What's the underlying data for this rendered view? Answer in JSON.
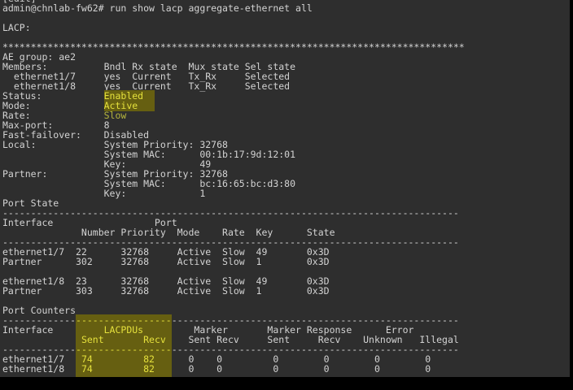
{
  "colors": {
    "desktop_bg": "#000000",
    "screen_bg": "#2e2e2e",
    "text": "#d3d3d3",
    "highlight_bg": "#665f11",
    "highlight_text": "#e4e03c",
    "highlight_dim_text": "#b5b53d"
  },
  "terminal": {
    "context": "[edit]",
    "prompt": "admin@chnlab-fw62#",
    "command": "run show lacp aggregate-ethernet all",
    "lines": [
      {
        "name": "edit-context-line",
        "segments": [
          [
            "norm",
            "[edit]"
          ]
        ]
      },
      {
        "name": "command-line",
        "segments": [
          [
            "norm",
            "admin@chnlab-fw62# run show lacp aggregate-ethernet all"
          ]
        ]
      },
      {
        "name": "blank-line",
        "segments": [
          [
            "norm",
            ""
          ]
        ]
      },
      {
        "name": "lacp-section-label",
        "segments": [
          [
            "norm",
            "LACP:"
          ]
        ]
      },
      {
        "name": "blank-line",
        "segments": [
          [
            "norm",
            ""
          ]
        ]
      },
      {
        "name": "section-separator-asterisks",
        "segments": [
          [
            "norm",
            "**********************************************************************************"
          ]
        ]
      },
      {
        "name": "ae-group-line",
        "segments": [
          [
            "norm",
            "AE group: ae2"
          ]
        ]
      },
      {
        "name": "members-header-row",
        "segments": [
          [
            "norm",
            "Members:          Bndl Rx state  Mux state Sel state"
          ]
        ]
      },
      {
        "name": "member-row-ethernet1-7",
        "segments": [
          [
            "norm",
            "  ethernet1/7     yes  Current   Tx_Rx     Selected"
          ]
        ]
      },
      {
        "name": "member-row-ethernet1-8",
        "segments": [
          [
            "norm",
            "  ethernet1/8     yes  Current   Tx_Rx     Selected"
          ]
        ]
      },
      {
        "name": "status-row",
        "segments": [
          [
            "norm",
            "Status:           "
          ],
          [
            "hl",
            "Enabled  "
          ]
        ]
      },
      {
        "name": "mode-row",
        "segments": [
          [
            "norm",
            "Mode:             "
          ],
          [
            "hl",
            "Active   "
          ]
        ]
      },
      {
        "name": "rate-row",
        "segments": [
          [
            "norm",
            "Rate:             "
          ],
          [
            "slow",
            "Slow     "
          ]
        ]
      },
      {
        "name": "max-port-row",
        "segments": [
          [
            "norm",
            "Max-port:         8"
          ]
        ]
      },
      {
        "name": "fast-failover-row",
        "segments": [
          [
            "norm",
            "Fast-failover:    Disabled"
          ]
        ]
      },
      {
        "name": "local-system-priority-row",
        "segments": [
          [
            "norm",
            "Local:            System Priority: 32768"
          ]
        ]
      },
      {
        "name": "local-system-mac-row",
        "segments": [
          [
            "norm",
            "                  System MAC:      00:1b:17:9d:12:01"
          ]
        ]
      },
      {
        "name": "local-key-row",
        "segments": [
          [
            "norm",
            "                  Key:             49"
          ]
        ]
      },
      {
        "name": "partner-system-priority-row",
        "segments": [
          [
            "norm",
            "Partner:          System Priority: 32768"
          ]
        ]
      },
      {
        "name": "partner-system-mac-row",
        "segments": [
          [
            "norm",
            "                  System MAC:      bc:16:65:bc:d3:80"
          ]
        ]
      },
      {
        "name": "partner-key-row",
        "segments": [
          [
            "norm",
            "                  Key:             1"
          ]
        ]
      },
      {
        "name": "port-state-section-title",
        "segments": [
          [
            "norm",
            "Port State"
          ]
        ]
      },
      {
        "name": "divider-dashes",
        "segments": [
          [
            "norm",
            "---------------------------------------------------------------------------------"
          ]
        ]
      },
      {
        "name": "port-state-header-row-1",
        "segments": [
          [
            "norm",
            "Interface                  Port"
          ]
        ]
      },
      {
        "name": "port-state-header-row-2",
        "segments": [
          [
            "norm",
            "              Number Priority  Mode    Rate  Key      State"
          ]
        ]
      },
      {
        "name": "divider-dashes",
        "segments": [
          [
            "norm",
            "---------------------------------------------------------------------------------"
          ]
        ]
      },
      {
        "name": "port-state-row-ethernet1-7",
        "segments": [
          [
            "norm",
            "ethernet1/7  22      32768     Active  Slow  49       0x3D"
          ]
        ]
      },
      {
        "name": "port-state-row-partner-1",
        "segments": [
          [
            "norm",
            "Partner      302     32768     Active  Slow  1        0x3D"
          ]
        ]
      },
      {
        "name": "blank-line",
        "segments": [
          [
            "norm",
            ""
          ]
        ]
      },
      {
        "name": "port-state-row-ethernet1-8",
        "segments": [
          [
            "norm",
            "ethernet1/8  23      32768     Active  Slow  49       0x3D"
          ]
        ]
      },
      {
        "name": "port-state-row-partner-2",
        "segments": [
          [
            "norm",
            "Partner      303     32768     Active  Slow  1        0x3D"
          ]
        ]
      },
      {
        "name": "blank-line",
        "segments": [
          [
            "norm",
            ""
          ]
        ]
      },
      {
        "name": "port-counters-section-title",
        "segments": [
          [
            "norm",
            "Port Counters"
          ]
        ]
      },
      {
        "name": "divider-dashes-highlighted",
        "segments": [
          [
            "norm",
            "-------------"
          ],
          [
            "hl",
            "-----------------"
          ],
          [
            "norm",
            "---------------------------------------------------"
          ]
        ]
      },
      {
        "name": "port-counters-header-row-1",
        "segments": [
          [
            "norm",
            "Interface    "
          ],
          [
            "hl",
            "     LACPDUs     "
          ],
          [
            "norm",
            "    Marker       Marker Response      Error"
          ]
        ]
      },
      {
        "name": "port-counters-header-row-2",
        "segments": [
          [
            "norm",
            "             "
          ],
          [
            "hl",
            " Sent       Recv "
          ],
          [
            "norm",
            "   Sent Recv     Sent     Recv    Unknown   Illegal"
          ]
        ]
      },
      {
        "name": "divider-dashes-highlighted",
        "segments": [
          [
            "norm",
            "-------------"
          ],
          [
            "hl",
            "-----------------"
          ],
          [
            "norm",
            "---------------------------------------------------"
          ]
        ]
      },
      {
        "name": "port-counters-row-ethernet1-7",
        "segments": [
          [
            "norm",
            "ethernet1/7  "
          ],
          [
            "hl",
            " 74         82   "
          ],
          [
            "norm",
            "   0    0         0        0        0        0"
          ]
        ]
      },
      {
        "name": "port-counters-row-ethernet1-8",
        "segments": [
          [
            "norm",
            "ethernet1/8  "
          ],
          [
            "hl",
            " 74         82   "
          ],
          [
            "norm",
            "   0    0         0        0        0        0"
          ]
        ]
      },
      {
        "name": "highlight-band-stub",
        "class": "stub",
        "segments": [
          [
            "norm",
            "             "
          ],
          [
            "hl",
            "                 "
          ]
        ]
      }
    ]
  }
}
